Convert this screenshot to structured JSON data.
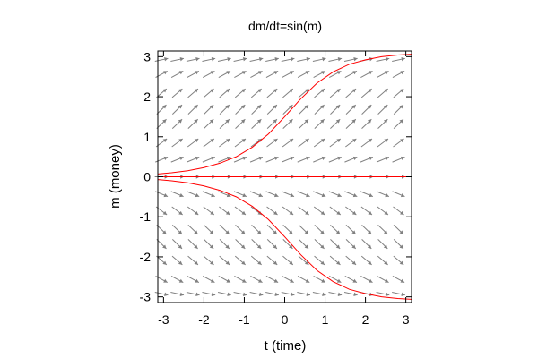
{
  "chart_data": {
    "type": "line",
    "title": "dm/dt=sin(m)",
    "xlabel": "t (time)",
    "ylabel": "m (money)",
    "xlim": [
      -3.14159,
      3.14159
    ],
    "ylim": [
      -3.14159,
      3.14159
    ],
    "xticks": [
      -3,
      -2,
      -1,
      0,
      1,
      2,
      3
    ],
    "yticks": [
      -3,
      -2,
      -1,
      0,
      1,
      2,
      3
    ],
    "grid": false,
    "legend": "none",
    "field": {
      "equation": "sin(m)",
      "t_samples": [
        -3.05,
        -2.66,
        -2.27,
        -1.88,
        -1.49,
        -1.1,
        -0.7,
        -0.31,
        0.08,
        0.47,
        0.86,
        1.25,
        1.64,
        2.03,
        2.43,
        2.82
      ],
      "m_samples": [
        -2.92,
        -2.56,
        -2.09,
        -1.68,
        -1.32,
        -0.85,
        -0.43,
        0.0,
        0.43,
        0.85,
        1.32,
        1.68,
        2.09,
        2.56,
        2.92
      ],
      "color": "#808080"
    },
    "series": [
      {
        "color": "#ff0000",
        "x": [
          -3.14,
          -2.8,
          -2.4,
          -2.0,
          -1.6,
          -1.2,
          -0.8,
          -0.4,
          0.0,
          0.4,
          0.8,
          1.2,
          1.6,
          2.0,
          2.4,
          2.8,
          3.14
        ],
        "y": [
          0.07,
          0.1,
          0.15,
          0.23,
          0.34,
          0.5,
          0.74,
          1.07,
          1.5,
          1.95,
          2.34,
          2.62,
          2.81,
          2.92,
          3.0,
          3.04,
          3.06
        ]
      },
      {
        "color": "#ff0000",
        "x": [
          -3.14,
          3.14
        ],
        "y": [
          0.0,
          0.0
        ]
      },
      {
        "color": "#ff0000",
        "x": [
          -3.14,
          -2.8,
          -2.4,
          -2.0,
          -1.6,
          -1.2,
          -0.8,
          -0.4,
          0.0,
          0.4,
          0.8,
          1.2,
          1.6,
          2.0,
          2.4,
          2.8,
          3.14
        ],
        "y": [
          -0.07,
          -0.1,
          -0.15,
          -0.23,
          -0.34,
          -0.5,
          -0.74,
          -1.07,
          -1.5,
          -1.95,
          -2.34,
          -2.62,
          -2.81,
          -2.92,
          -3.0,
          -3.04,
          -3.06
        ]
      }
    ]
  }
}
